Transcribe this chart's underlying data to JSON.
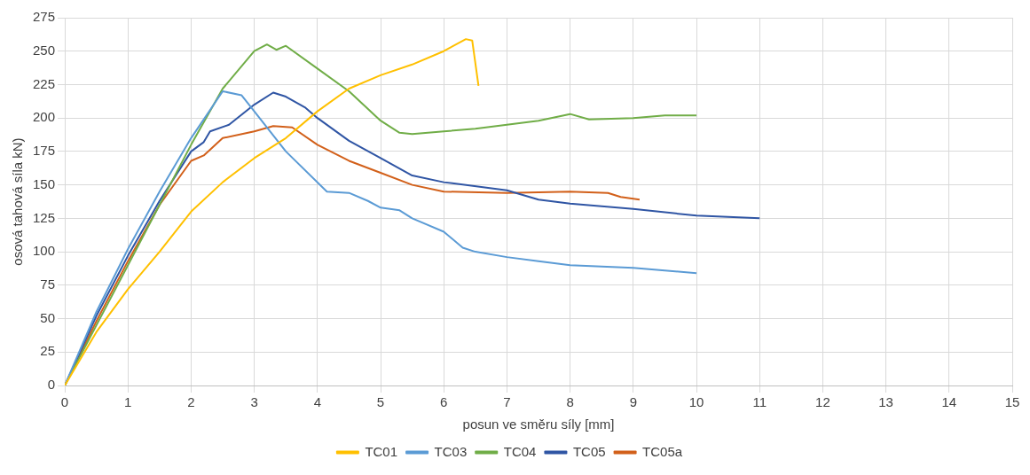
{
  "chart_data": {
    "type": "line",
    "xlabel": "posun ve směru síly [mm]",
    "ylabel": "osová tahová síla kN)",
    "xlim": [
      0,
      15
    ],
    "xticks": [
      0,
      1,
      2,
      3,
      4,
      5,
      6,
      7,
      8,
      9,
      10,
      11,
      12,
      13,
      14,
      15
    ],
    "ylim": [
      0,
      275
    ],
    "yticks": [
      0,
      25,
      50,
      75,
      100,
      125,
      150,
      175,
      200,
      225,
      250,
      275
    ],
    "grid": true,
    "legend": "bottom",
    "marker": "none",
    "line_style": "solid",
    "series": [
      {
        "name": "TC01",
        "color": "#ffc000",
        "x": [
          0,
          0.5,
          1,
          1.5,
          2,
          2.5,
          3,
          3.5,
          4,
          4.5,
          5,
          5.5,
          6,
          6.35,
          6.45,
          6.55
        ],
        "values": [
          0,
          40,
          72,
          100,
          130,
          152,
          170,
          185,
          205,
          222,
          232,
          240,
          250,
          259,
          258,
          224
        ]
      },
      {
        "name": "TC03",
        "color": "#5b9bd5",
        "x": [
          0,
          0.5,
          1,
          1.5,
          2,
          2.5,
          2.8,
          3,
          3.5,
          4.15,
          4.5,
          4.8,
          5,
          5.3,
          5.5,
          6,
          6.3,
          6.5,
          7,
          7.5,
          8,
          8.5,
          9,
          9.5,
          10
        ],
        "values": [
          0,
          55,
          102,
          145,
          185,
          220,
          217,
          205,
          175,
          145,
          144,
          138,
          133,
          131,
          125,
          115,
          103,
          100,
          96,
          93,
          90,
          89,
          88,
          86,
          84
        ]
      },
      {
        "name": "TC04",
        "color": "#70ad47",
        "x": [
          0,
          0.5,
          1,
          1.5,
          2,
          2.5,
          3,
          3.2,
          3.35,
          3.5,
          4,
          4.5,
          5,
          5.3,
          5.5,
          6,
          6.5,
          7,
          7.5,
          8,
          8.3,
          9,
          9.5,
          10
        ],
        "values": [
          0,
          45,
          90,
          135,
          180,
          222,
          250,
          255,
          251,
          254,
          237,
          220,
          198,
          189,
          188,
          190,
          192,
          195,
          198,
          203,
          199,
          200,
          202,
          202
        ]
      },
      {
        "name": "TC05",
        "color": "#2f55a4",
        "x": [
          0,
          0.5,
          1,
          1.5,
          2,
          2.2,
          2.3,
          2.6,
          3,
          3.3,
          3.5,
          3.8,
          4,
          4.5,
          5,
          5.5,
          6,
          7,
          7.5,
          8,
          9,
          10,
          11
        ],
        "values": [
          0,
          52,
          97,
          138,
          175,
          182,
          190,
          195,
          210,
          219,
          216,
          208,
          200,
          183,
          170,
          157,
          152,
          146,
          139,
          136,
          132,
          127,
          125
        ]
      },
      {
        "name": "TC05a",
        "color": "#d2601a",
        "x": [
          0,
          0.5,
          1,
          1.5,
          2,
          2.2,
          2.5,
          3,
          3.3,
          3.6,
          4,
          4.5,
          5,
          5.5,
          6,
          7,
          8,
          8.6,
          8.8,
          9.1
        ],
        "values": [
          0,
          48,
          93,
          135,
          168,
          172,
          185,
          190,
          194,
          193,
          180,
          168,
          159,
          150,
          145,
          144,
          145,
          144,
          141,
          139
        ]
      }
    ]
  }
}
